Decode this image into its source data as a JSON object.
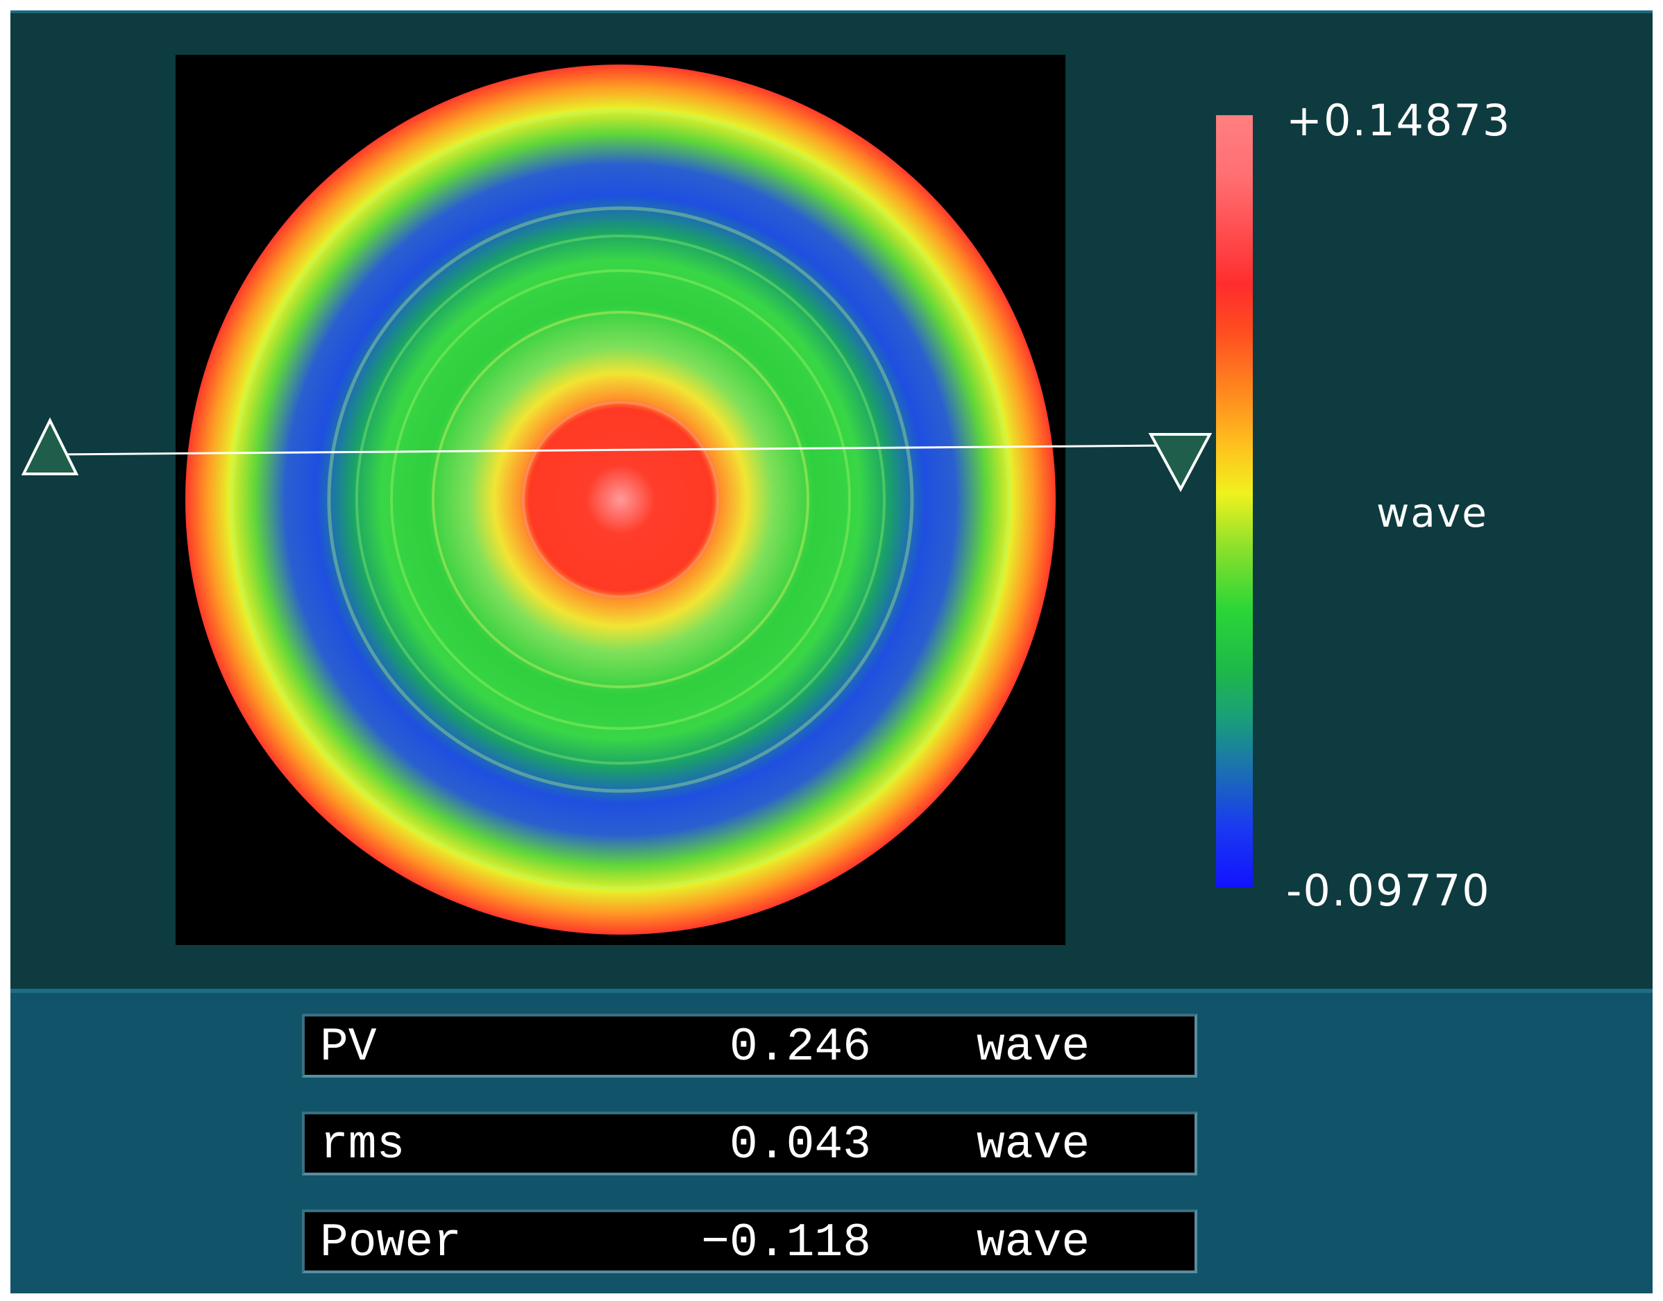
{
  "colormap": {
    "max_label": "+0.14873",
    "min_label": "-0.09770",
    "unit_label": "wave",
    "colors": [
      "#ff7f80",
      "#ff2d2d",
      "#ff8a1f",
      "#f0f21e",
      "#2bd637",
      "#1a9f79",
      "#1212ff"
    ]
  },
  "wavefront_map": {
    "background": "#000000",
    "rings": [
      {
        "name": "outer-edge",
        "color": "#ff3a2a"
      },
      {
        "name": "orange",
        "color": "#ff9a24"
      },
      {
        "name": "yellow",
        "color": "#e8f02a"
      },
      {
        "name": "green-outer",
        "color": "#5fd63a"
      },
      {
        "name": "blue-band",
        "color": "#1f4fe0"
      },
      {
        "name": "green-mid",
        "color": "#2fcf3e"
      },
      {
        "name": "light-green",
        "color": "#7fe05a"
      },
      {
        "name": "yellow-inner",
        "color": "#f2e433"
      },
      {
        "name": "orange-inner",
        "color": "#ff8f2b"
      },
      {
        "name": "red-core",
        "color": "#ff3a2a"
      }
    ]
  },
  "profile_cursor": {
    "left_marker": "up-triangle-marker",
    "right_marker": "down-triangle-marker",
    "line_color": "#ffffff",
    "marker_fill": "#1f5e4a"
  },
  "stats": [
    {
      "label": "PV",
      "value": "0.246",
      "unit": "wave"
    },
    {
      "label": "rms",
      "value": "0.043",
      "unit": "wave"
    },
    {
      "label": "Power",
      "value": "−0.118",
      "unit": "wave"
    }
  ]
}
